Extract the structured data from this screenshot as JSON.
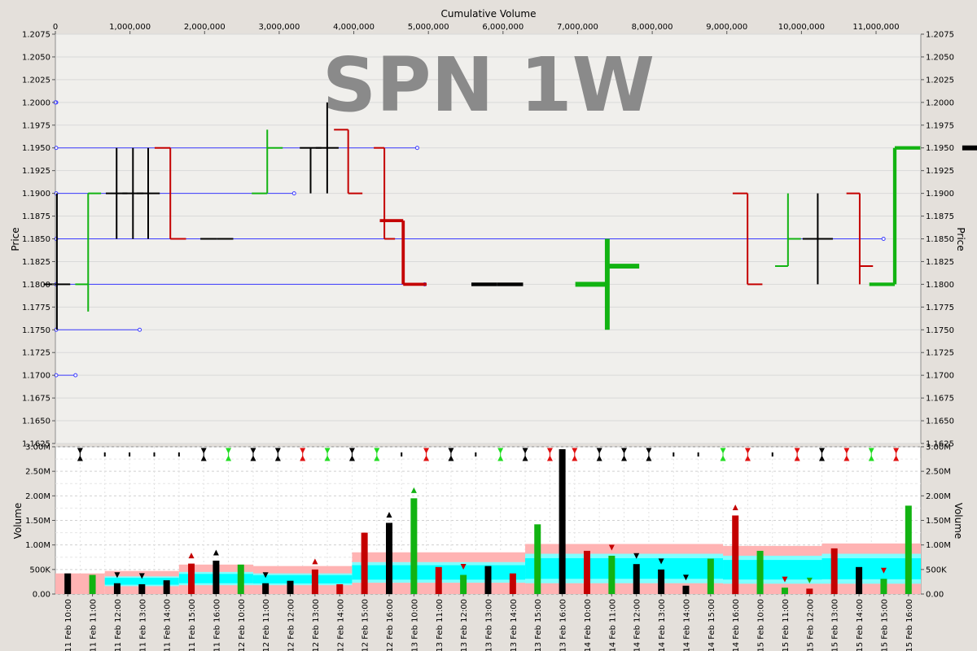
{
  "chart_data": {
    "type": "bar",
    "watermark": "SPN 1W",
    "top_axis_label": "Cumulative Volume",
    "price_axis_label": "Price",
    "volume_axis_label": "Volume",
    "cum_volume_ticks": [
      "0",
      "1,000,000",
      "2,000,000",
      "3,000,000",
      "4,000,000",
      "5,000,000",
      "6,000,000",
      "7,000,000",
      "8,000,000",
      "9,000,000",
      "10,000,000",
      "11,000,000"
    ],
    "price_ticks": [
      "1.2075",
      "1.2050",
      "1.2025",
      "1.2000",
      "1.1975",
      "1.1950",
      "1.1925",
      "1.1900",
      "1.1875",
      "1.1850",
      "1.1825",
      "1.1800",
      "1.1775",
      "1.1750",
      "1.1725",
      "1.1700",
      "1.1675",
      "1.1650",
      "1.1625"
    ],
    "price_range": [
      1.1625,
      1.2075
    ],
    "cum_volume_range": [
      0,
      11600000
    ],
    "volume_ticks": [
      "0.00",
      "500K",
      "1.00M",
      "1.50M",
      "2.00M",
      "2.50M",
      "3.00M"
    ],
    "volume_range": [
      0,
      3000000
    ],
    "colors": {
      "up": "#12b312",
      "down": "#c40000",
      "flat": "#000000",
      "level": "#3a3aff",
      "pink": "#ffb3b3",
      "cyan": "#80ffff",
      "cyan_dark": "#00ffff"
    },
    "bars": [
      {
        "time": "11 Feb 10:00",
        "open": 1.18,
        "high": 1.19,
        "low": 1.175,
        "close": 1.18,
        "volume": 420000,
        "dir": "flat"
      },
      {
        "time": "11 Feb 11:00",
        "open": 1.18,
        "high": 1.19,
        "low": 1.177,
        "close": 1.19,
        "volume": 390000,
        "dir": "up"
      },
      {
        "time": "11 Feb 12:00",
        "open": 1.19,
        "high": 1.195,
        "low": 1.185,
        "close": 1.19,
        "volume": 220000,
        "dir": "flat"
      },
      {
        "time": "11 Feb 13:00",
        "open": 1.19,
        "high": 1.195,
        "low": 1.185,
        "close": 1.19,
        "volume": 200000,
        "dir": "flat"
      },
      {
        "time": "11 Feb 14:00",
        "open": 1.19,
        "high": 1.195,
        "low": 1.185,
        "close": 1.19,
        "volume": 280000,
        "dir": "flat"
      },
      {
        "time": "11 Feb 15:00",
        "open": 1.195,
        "high": 1.195,
        "low": 1.185,
        "close": 1.185,
        "volume": 620000,
        "dir": "down"
      },
      {
        "time": "11 Feb 16:00",
        "open": 1.185,
        "high": 1.185,
        "low": 1.185,
        "close": 1.185,
        "volume": 680000,
        "dir": "flat"
      },
      {
        "time": "12 Feb 10:00",
        "open": 1.19,
        "high": 1.197,
        "low": 1.19,
        "close": 1.195,
        "volume": 600000,
        "dir": "up"
      },
      {
        "time": "12 Feb 11:00",
        "open": 1.195,
        "high": 1.195,
        "low": 1.19,
        "close": 1.195,
        "volume": 220000,
        "dir": "flat"
      },
      {
        "time": "12 Feb 12:00",
        "open": 1.195,
        "high": 1.2,
        "low": 1.19,
        "close": 1.195,
        "volume": 270000,
        "dir": "flat"
      },
      {
        "time": "12 Feb 13:00",
        "open": 1.197,
        "high": 1.197,
        "low": 1.19,
        "close": 1.19,
        "volume": 500000,
        "dir": "down"
      },
      {
        "time": "12 Feb 14:00",
        "open": 1.195,
        "high": 1.195,
        "low": 1.185,
        "close": 1.185,
        "volume": 200000,
        "dir": "down"
      },
      {
        "time": "12 Feb 15:00",
        "open": 1.187,
        "high": 1.187,
        "low": 1.18,
        "close": 1.18,
        "volume": 1250000,
        "dir": "down"
      },
      {
        "time": "12 Feb 16:00",
        "open": 1.18,
        "high": 1.18,
        "low": 1.18,
        "close": 1.18,
        "volume": 1450000,
        "dir": "flat"
      },
      {
        "time": "13 Feb 10:00",
        "open": 1.18,
        "high": 1.185,
        "low": 1.175,
        "close": 1.182,
        "volume": 1950000,
        "dir": "up"
      },
      {
        "time": "13 Feb 11:00",
        "open": 1.19,
        "high": 1.19,
        "low": 1.18,
        "close": 1.18,
        "volume": 550000,
        "dir": "down"
      },
      {
        "time": "13 Feb 12:00",
        "open": 1.182,
        "high": 1.19,
        "low": 1.182,
        "close": 1.185,
        "volume": 390000,
        "dir": "up"
      },
      {
        "time": "13 Feb 13:00",
        "open": 1.185,
        "high": 1.19,
        "low": 1.18,
        "close": 1.185,
        "volume": 570000,
        "dir": "flat"
      },
      {
        "time": "13 Feb 14:00",
        "open": 1.19,
        "high": 1.19,
        "low": 1.18,
        "close": 1.182,
        "volume": 420000,
        "dir": "down"
      },
      {
        "time": "13 Feb 15:00",
        "open": 1.18,
        "high": 1.195,
        "low": 1.18,
        "close": 1.195,
        "volume": 1420000,
        "dir": "up"
      },
      {
        "time": "13 Feb 16:00",
        "open": 1.195,
        "high": 1.195,
        "low": 1.195,
        "close": 1.195,
        "volume": 2950000,
        "dir": "flat"
      },
      {
        "time": "14 Feb 10:00",
        "open": 1.195,
        "high": 1.195,
        "low": 1.18,
        "close": 1.182,
        "volume": 880000,
        "dir": "down"
      },
      {
        "time": "14 Feb 11:00",
        "open": 1.18,
        "high": 1.185,
        "low": 1.18,
        "close": 1.185,
        "volume": 780000,
        "dir": "up"
      },
      {
        "time": "14 Feb 12:00",
        "open": 1.185,
        "high": 1.187,
        "low": 1.18,
        "close": 1.185,
        "volume": 610000,
        "dir": "flat"
      },
      {
        "time": "14 Feb 13:00",
        "open": 1.185,
        "high": 1.19,
        "low": 1.18,
        "close": 1.185,
        "volume": 500000,
        "dir": "flat"
      },
      {
        "time": "14 Feb 14:00",
        "open": 1.185,
        "high": 1.19,
        "low": 1.185,
        "close": 1.185,
        "volume": 170000,
        "dir": "flat"
      },
      {
        "time": "14 Feb 15:00",
        "open": 1.185,
        "high": 1.19,
        "low": 1.185,
        "close": 1.19,
        "volume": 720000,
        "dir": "up"
      },
      {
        "time": "14 Feb 16:00",
        "open": 1.19,
        "high": 1.19,
        "low": 1.185,
        "close": 1.185,
        "volume": 1600000,
        "dir": "down"
      },
      {
        "time": "15 Feb 10:00",
        "open": 1.185,
        "high": 1.195,
        "low": 1.185,
        "close": 1.187,
        "volume": 880000,
        "dir": "up"
      },
      {
        "time": "15 Feb 11:00",
        "open": 1.185,
        "high": 1.19,
        "low": 1.185,
        "close": 1.19,
        "volume": 130000,
        "dir": "up"
      },
      {
        "time": "15 Feb 12:00",
        "open": 1.19,
        "high": 1.19,
        "low": 1.185,
        "close": 1.185,
        "volume": 110000,
        "dir": "down"
      },
      {
        "time": "15 Feb 13:00",
        "open": 1.19,
        "high": 1.19,
        "low": 1.17,
        "close": 1.175,
        "volume": 930000,
        "dir": "down"
      },
      {
        "time": "15 Feb 14:00",
        "open": 1.175,
        "high": 1.18,
        "low": 1.17,
        "close": 1.175,
        "volume": 550000,
        "dir": "flat"
      },
      {
        "time": "15 Feb 15:00",
        "open": 1.175,
        "high": 1.18,
        "low": 1.175,
        "close": 1.18,
        "volume": 310000,
        "dir": "up"
      },
      {
        "time": "15 Feb 16:00",
        "open": 1.18,
        "high": 1.185,
        "low": 1.18,
        "close": 1.185,
        "volume": 1800000,
        "dir": "up"
      }
    ],
    "marker_row": [
      "both-black",
      "tick-black",
      "tick-black",
      "tick-black",
      "tick-black",
      "both-black",
      "both-green",
      "both-black",
      "both-black",
      "both-red",
      "both-green",
      "both-black",
      "both-green",
      "tick-black",
      "both-red",
      "both-black",
      "tick-black",
      "both-green",
      "both-black",
      "both-red",
      "both-red",
      "both-black",
      "both-black",
      "both-black",
      "tick-black",
      "tick-black",
      "both-green",
      "both-red",
      "tick-black",
      "both-red",
      "both-black",
      "both-red",
      "both-green",
      "both-red"
    ],
    "volume_markers": [
      {
        "bar": 2,
        "shape": "down",
        "color": "#000000"
      },
      {
        "bar": 3,
        "shape": "down",
        "color": "#000000"
      },
      {
        "bar": 5,
        "shape": "up",
        "color": "#c40000"
      },
      {
        "bar": 6,
        "shape": "up",
        "color": "#000000"
      },
      {
        "bar": 8,
        "shape": "down",
        "color": "#000000"
      },
      {
        "bar": 10,
        "shape": "up",
        "color": "#c40000"
      },
      {
        "bar": 13,
        "shape": "up",
        "color": "#000000"
      },
      {
        "bar": 14,
        "shape": "up",
        "color": "#12b312"
      },
      {
        "bar": 16,
        "shape": "down",
        "color": "#c40000"
      },
      {
        "bar": 22,
        "shape": "down",
        "color": "#c40000"
      },
      {
        "bar": 23,
        "shape": "down",
        "color": "#000000"
      },
      {
        "bar": 24,
        "shape": "down",
        "color": "#000000"
      },
      {
        "bar": 25,
        "shape": "down",
        "color": "#000000"
      },
      {
        "bar": 27,
        "shape": "up",
        "color": "#c40000"
      },
      {
        "bar": 29,
        "shape": "down",
        "color": "#c40000"
      },
      {
        "bar": 30,
        "shape": "down",
        "color": "#12b312"
      },
      {
        "bar": 33,
        "shape": "down",
        "color": "#c40000"
      }
    ],
    "volume_band": [
      {
        "from": 0,
        "to": 2,
        "outer": 420000,
        "inner_hi": 0,
        "inner_lo": 0
      },
      {
        "from": 2,
        "to": 5,
        "outer": 470000,
        "inner_hi": 360000,
        "inner_lo": 160000
      },
      {
        "from": 5,
        "to": 8,
        "outer": 600000,
        "inner_hi": 450000,
        "inner_lo": 180000
      },
      {
        "from": 8,
        "to": 12,
        "outer": 570000,
        "inner_hi": 420000,
        "inner_lo": 180000
      },
      {
        "from": 12,
        "to": 19,
        "outer": 850000,
        "inner_hi": 650000,
        "inner_lo": 230000
      },
      {
        "from": 19,
        "to": 27,
        "outer": 1020000,
        "inner_hi": 820000,
        "inner_lo": 220000
      },
      {
        "from": 27,
        "to": 31,
        "outer": 980000,
        "inner_hi": 780000,
        "inner_lo": 210000
      },
      {
        "from": 31,
        "to": 35,
        "outer": 1030000,
        "inner_hi": 820000,
        "inner_lo": 210000
      }
    ],
    "price_levels": [
      {
        "price": 1.2,
        "to_cum": 0
      },
      {
        "price": 1.195,
        "to_cum": 4850000
      },
      {
        "price": 1.19,
        "to_cum": 3200000
      },
      {
        "price": 1.185,
        "to_cum": 11100000
      },
      {
        "price": 1.18,
        "to_cum": 4950000
      },
      {
        "price": 1.175,
        "to_cum": 1130000
      },
      {
        "price": 1.17,
        "to_cum": 270000
      }
    ]
  }
}
